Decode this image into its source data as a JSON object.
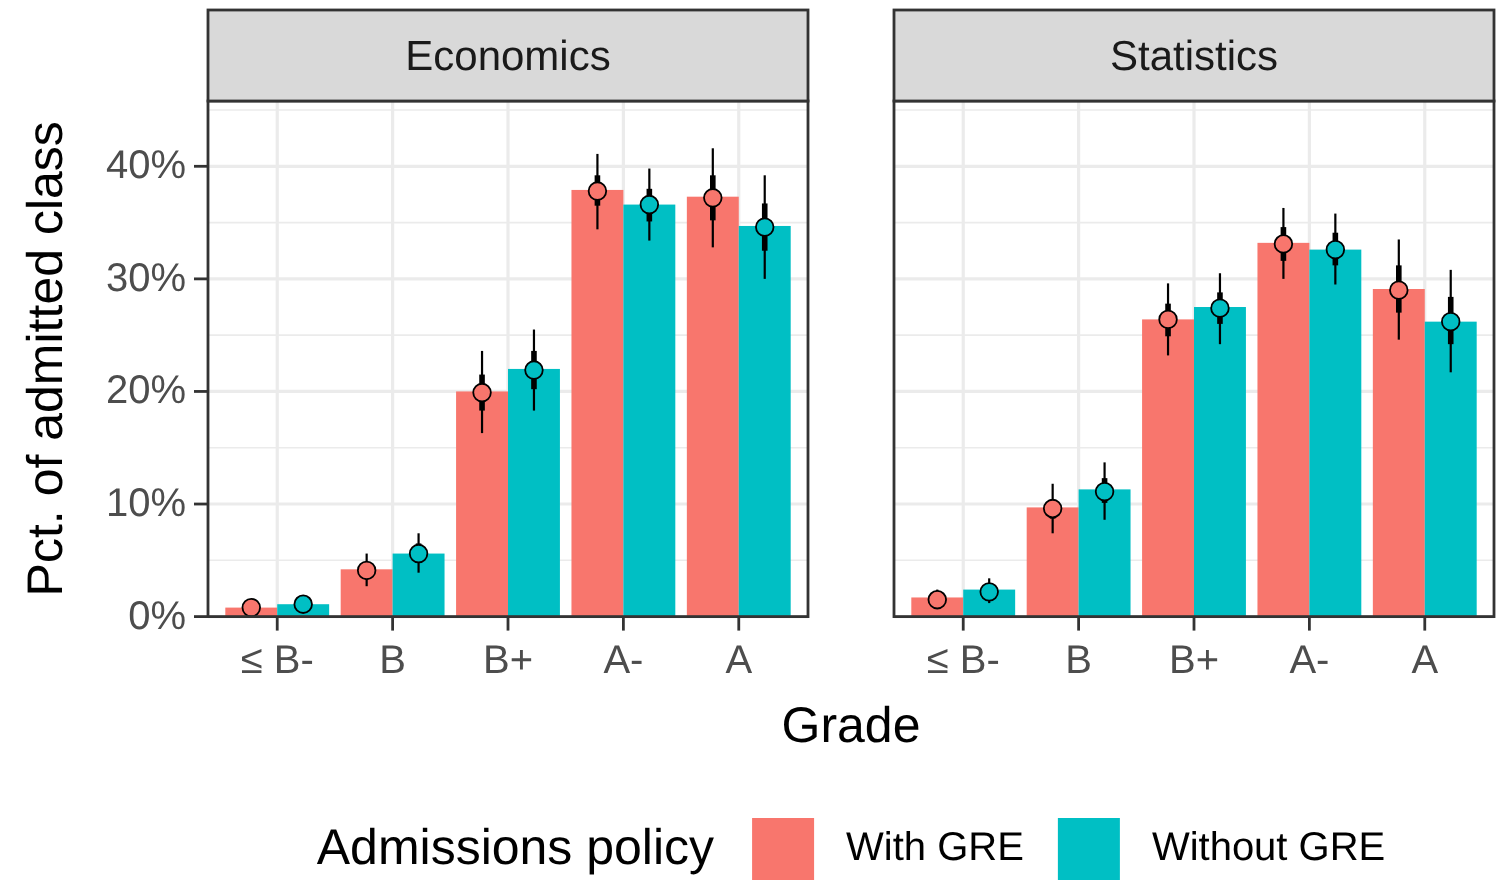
{
  "chart_data": [
    {
      "type": "bar",
      "title": "Economics",
      "xlabel": "Grade",
      "ylabel": "Pct. of admitted class",
      "legend_title": "Admissions policy",
      "categories": [
        "≤ B-",
        "B",
        "B+",
        "A-",
        "A"
      ],
      "series": [
        {
          "name": "With GRE",
          "color": "#f8766d",
          "values": [
            0.8,
            4.2,
            20.0,
            37.9,
            37.3
          ],
          "errors": [
            null,
            [
              3.6,
              4.7
            ],
            [
              18.3,
              21.5
            ],
            [
              36.5,
              39.2
            ],
            [
              35.2,
              39.2
            ]
          ]
        },
        {
          "name": "Without GRE",
          "color": "#00bfc4",
          "values": [
            1.1,
            5.6,
            22.0,
            36.6,
            34.7
          ],
          "errors": [
            null,
            [
              4.8,
              6.5
            ],
            [
              20.2,
              23.6
            ],
            [
              35.1,
              38.0
            ],
            [
              32.5,
              36.7
            ]
          ]
        },
        {
          "type": "scatter",
          "color": "#f8766d",
          "marker": "circle",
          "x": [
            "≤ B-",
            "B",
            "B+",
            "A-",
            "A"
          ],
          "values": [
            0.8,
            4.1,
            19.9,
            37.8,
            37.2
          ],
          "errors": [
            [
              0.5,
              1.1
            ],
            [
              2.7,
              5.6
            ],
            [
              16.3,
              23.6
            ],
            [
              34.4,
              41.1
            ],
            [
              32.8,
              41.6
            ]
          ]
        },
        {
          "type": "scatter",
          "color": "#00bfc4",
          "marker": "circle",
          "x": [
            "≤ B-",
            "B",
            "B+",
            "A-",
            "A"
          ],
          "values": [
            1.1,
            5.6,
            21.9,
            36.6,
            34.6
          ],
          "errors": [
            [
              0.7,
              1.6
            ],
            [
              3.9,
              7.4
            ],
            [
              18.3,
              25.5
            ],
            [
              33.4,
              39.8
            ],
            [
              30.0,
              39.2
            ]
          ]
        }
      ],
      "ylim": [
        0,
        45.8
      ],
      "yticks": [
        {
          "value": 0,
          "label": "0%"
        },
        {
          "value": 5,
          "label": null
        },
        {
          "value": 10,
          "label": "10%"
        },
        {
          "value": 15,
          "label": null
        },
        {
          "value": 20,
          "label": "20%"
        },
        {
          "value": 25,
          "label": null
        },
        {
          "value": 30,
          "label": "30%"
        },
        {
          "value": 35,
          "label": null
        },
        {
          "value": 40,
          "label": "40%"
        },
        {
          "value": 45,
          "label": null
        }
      ],
      "grid": true,
      "legend": "bottom"
    },
    {
      "type": "bar",
      "title": "Statistics",
      "categories": [
        "≤ B-",
        "B",
        "B+",
        "A-",
        "A"
      ],
      "series": [
        {
          "color": "#f8766d",
          "values": [
            1.7,
            9.7,
            26.4,
            33.2,
            29.1
          ],
          "errors": [
            null,
            [
              8.7,
              10.4
            ],
            [
              24.9,
              27.8
            ],
            [
              31.6,
              34.6
            ],
            [
              27.0,
              31.2
            ]
          ]
        },
        {
          "color": "#00bfc4",
          "values": [
            2.4,
            11.3,
            27.5,
            32.6,
            26.2
          ],
          "errors": [
            null,
            [
              10.1,
              12.3
            ],
            [
              26.0,
              28.8
            ],
            [
              31.2,
              34.1
            ],
            [
              24.2,
              28.4
            ]
          ]
        },
        {
          "type": "scatter",
          "color": "#f8766d",
          "marker": "circle",
          "x": [
            "≤ B-",
            "B",
            "B+",
            "A-",
            "A"
          ],
          "values": [
            1.5,
            9.6,
            26.4,
            33.1,
            29.0
          ],
          "errors": [
            [
              0.7,
              2.4
            ],
            [
              7.4,
              11.8
            ],
            [
              23.2,
              29.6
            ],
            [
              30.0,
              36.3
            ],
            [
              24.6,
              33.5
            ]
          ]
        },
        {
          "type": "scatter",
          "color": "#00bfc4",
          "marker": "circle",
          "x": [
            "≤ B-",
            "B",
            "B+",
            "A-",
            "A"
          ],
          "values": [
            2.2,
            11.1,
            27.4,
            32.6,
            26.2
          ],
          "errors": [
            [
              1.2,
              3.4
            ],
            [
              8.6,
              13.7
            ],
            [
              24.2,
              30.5
            ],
            [
              29.5,
              35.8
            ],
            [
              21.7,
              30.8
            ]
          ]
        }
      ],
      "ylim": [
        0,
        45.8
      ],
      "yticks": [
        0,
        {
          "value": 5,
          "label": null
        },
        10,
        {
          "value": 15,
          "label": null
        },
        20,
        {
          "value": 25,
          "label": null
        },
        30,
        {
          "value": 35,
          "label": null
        },
        40,
        {
          "value": 45,
          "label": null
        }
      ],
      "tick_labels": "x",
      "grid": true
    }
  ]
}
